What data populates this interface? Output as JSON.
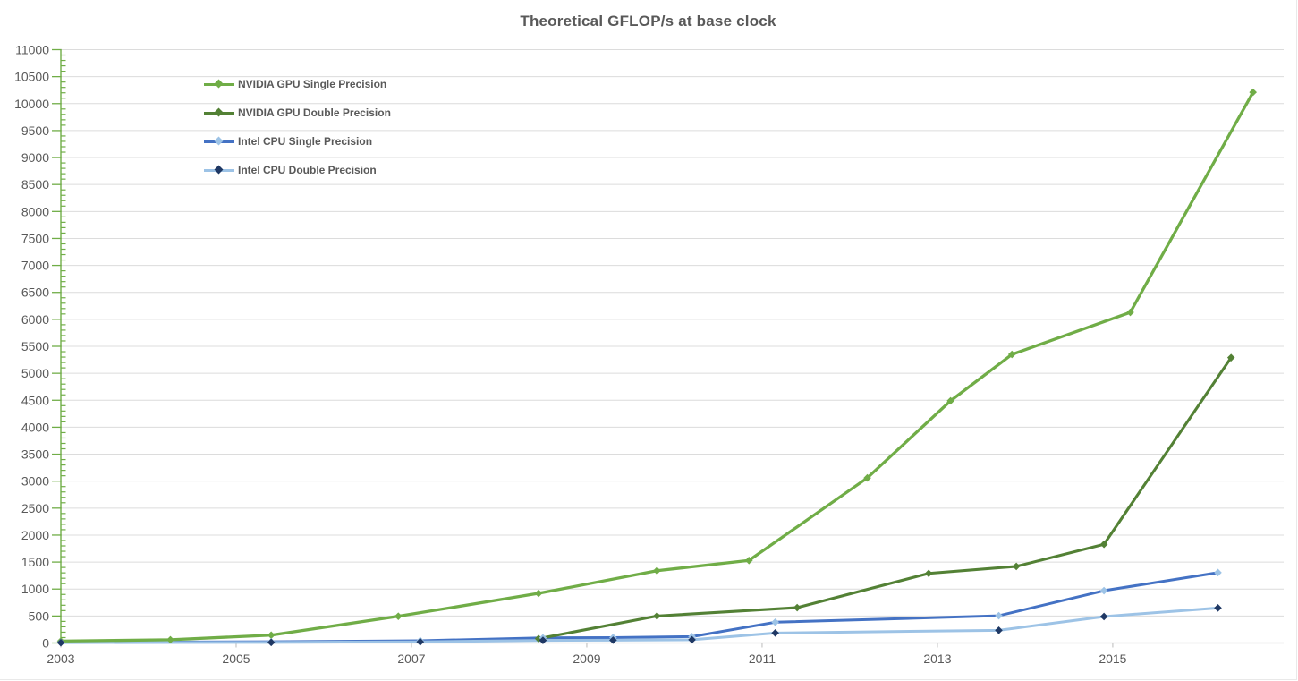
{
  "chart_data": {
    "type": "line",
    "title": "Theoretical GFLOP/s at base clock",
    "xlabel": "",
    "ylabel": "",
    "grid": "horizontal",
    "legend_position": "top-left",
    "x_axis": {
      "min": 2003,
      "max": 2016.95,
      "tick_years": [
        2003,
        2005,
        2007,
        2009,
        2011,
        2013,
        2015
      ]
    },
    "y_axis": {
      "min": 0,
      "max": 11000,
      "major_step": 500,
      "minor_step": 100
    },
    "colors": {
      "axis_y": "#70AD47",
      "axis_x": "#c6c6c6",
      "gridline": "#dcdcdc",
      "tick_label": "#595959",
      "title": "#595959"
    },
    "series": [
      {
        "name": "NVIDIA GPU Single Precision",
        "line_color": "#70AD47",
        "marker_color": "#70AD47",
        "points": [
          [
            2003.0,
            35
          ],
          [
            2004.25,
            60
          ],
          [
            2005.4,
            145
          ],
          [
            2006.85,
            495
          ],
          [
            2008.45,
            920
          ],
          [
            2009.8,
            1340
          ],
          [
            2010.85,
            1530
          ],
          [
            2012.2,
            3060
          ],
          [
            2013.15,
            4490
          ],
          [
            2013.85,
            5350
          ],
          [
            2015.2,
            6130
          ],
          [
            2016.6,
            10210
          ]
        ]
      },
      {
        "name": "NVIDIA GPU Double Precision",
        "line_color": "#538135",
        "marker_color": "#538135",
        "points": [
          [
            2008.45,
            80
          ],
          [
            2009.8,
            500
          ],
          [
            2011.4,
            655
          ],
          [
            2012.9,
            1290
          ],
          [
            2013.9,
            1420
          ],
          [
            2014.9,
            1830
          ],
          [
            2016.35,
            5290
          ]
        ]
      },
      {
        "name": "Intel CPU Single Precision",
        "line_color": "#4472C4",
        "marker_color": "#9DC3E6",
        "points": [
          [
            2003.0,
            12
          ],
          [
            2005.4,
            22
          ],
          [
            2007.1,
            42
          ],
          [
            2008.5,
            95
          ],
          [
            2009.3,
            100
          ],
          [
            2010.2,
            118
          ],
          [
            2011.15,
            385
          ],
          [
            2013.7,
            505
          ],
          [
            2014.9,
            970
          ],
          [
            2016.2,
            1305
          ]
        ]
      },
      {
        "name": "Intel CPU Double Precision",
        "line_color": "#9DC3E6",
        "marker_color": "#1F3864",
        "points": [
          [
            2003.0,
            6
          ],
          [
            2005.4,
            11
          ],
          [
            2007.1,
            21
          ],
          [
            2008.5,
            48
          ],
          [
            2009.3,
            52
          ],
          [
            2010.2,
            60
          ],
          [
            2011.15,
            185
          ],
          [
            2013.7,
            235
          ],
          [
            2014.9,
            490
          ],
          [
            2016.2,
            650
          ]
        ]
      }
    ]
  }
}
